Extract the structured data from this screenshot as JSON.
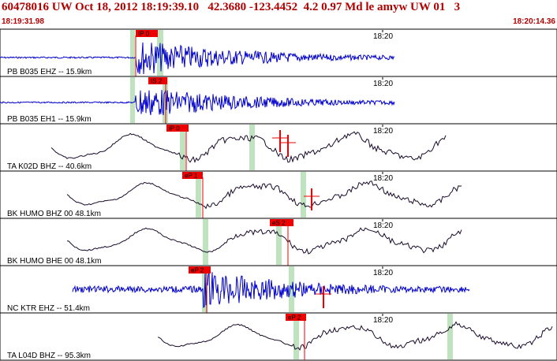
{
  "header": {
    "title": "60478016 UW Oct 18, 2012 18:19:39.10   42.3680 -123.4452  4.2 0.97 Md le amyw UW 01   3",
    "start_time": "18:19:31.98",
    "end_time": "18:20:14.36"
  },
  "colors": {
    "header_text": "#b00000",
    "pick_flag": "#ee0000",
    "pick_window": "#bfe3bf",
    "trace_blue": "#0000cc",
    "trace_black": "#1a0a2a"
  },
  "channels": [
    {
      "label": "PB B035 EHZ -- 15.9km",
      "minute_label": "18:20",
      "pick": "IP 0",
      "trace_color": "blue"
    },
    {
      "label": "PB B035 EH1 -- 15.9km",
      "minute_label": "18:20",
      "pick": "IS 2",
      "trace_color": "blue"
    },
    {
      "label": "TA K02D BHZ -- 40.6km",
      "minute_label": "18:20",
      "pick": "iP 0",
      "trace_color": "black"
    },
    {
      "label": "BK HUMO BHZ 00 48.1km",
      "minute_label": "18:20",
      "pick": "eP 1",
      "trace_color": "black"
    },
    {
      "label": "BK HUMO BHE 00 48.1km",
      "minute_label": "18:20",
      "pick": "eS 2",
      "trace_color": "black"
    },
    {
      "label": "NC KTR EHZ -- 51.4km",
      "minute_label": "18:20",
      "pick": "eP 2",
      "trace_color": "blue"
    },
    {
      "label": "TA L04D BHZ -- 95.3km",
      "minute_label": "18:20",
      "pick": "eP 2",
      "trace_color": "black"
    }
  ]
}
